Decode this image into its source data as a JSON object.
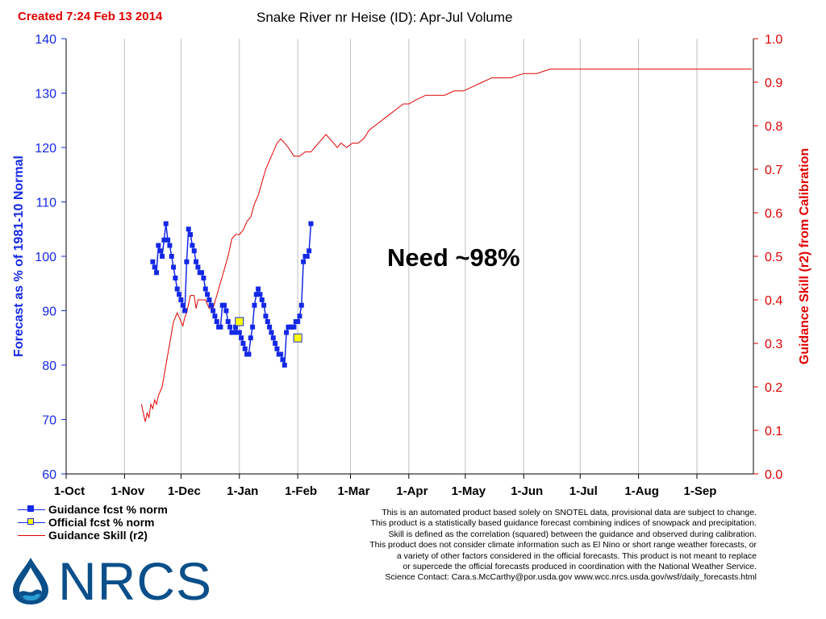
{
  "created": "Created 7:24 Feb 13 2014",
  "annotation": "Need ~98%",
  "legend": [
    {
      "label": "Guidance fcst  % norm",
      "color": "#1428e6",
      "marker": "square-filled"
    },
    {
      "label": "Official fcst  %  norm",
      "color": "#ffff00",
      "marker": "square-open"
    },
    {
      "label": "Guidance Skill (r2)",
      "color": "#e00000",
      "marker": "none"
    }
  ],
  "disclaimer": [
    "This is an automated product based solely on SNOTEL  data, provisional data are subject to change.",
    "This product is a statistically based guidance forecast combining indices of snowpack and precipitation.",
    "Skill is defined as the correlation (squared) between the guidance and observed during calibration.",
    "This product does not consider climate information such as El  Nino or short range weather forecasts, or",
    "a variety of other factors considered in the official forecasts. This product is not meant to replace",
    "or supercede the official forecasts produced in coordination with the National Weather Service.",
    "Science Contact: Cara.s.McCarthy@por.usda.gov www.wcc.nrcs.usda.gov/wsf/daily_forecasts.html"
  ],
  "logo": {
    "text": "NRCS",
    "icon": "water-drop-icon",
    "color": "#0a4f8a"
  },
  "chart_data": {
    "type": "line",
    "title": "Snake River nr Heise (ID): Apr-Jul Volume",
    "ylabel": "Forecast as % of 1981-10 Normal",
    "y2label": "Guidance Skill (r2) from Calibration",
    "xlabel": "",
    "x_tick_labels": [
      "1-Oct",
      "1-Nov",
      "1-Dec",
      "1-Jan",
      "1-Feb",
      "1-Mar",
      "1-Apr",
      "1-May",
      "1-Jun",
      "1-Jul",
      "1-Aug",
      "1-Sep"
    ],
    "x_range_days": [
      0,
      365
    ],
    "ylim": [
      60,
      140
    ],
    "y_ticks": [
      60,
      70,
      80,
      90,
      100,
      110,
      120,
      130,
      140
    ],
    "y2lim": [
      0.0,
      1.0
    ],
    "y2_ticks": [
      "0.0",
      "0.1",
      "0.2",
      "0.3",
      "0.4",
      "0.5",
      "0.6",
      "0.7",
      "0.8",
      "0.9",
      "1.0"
    ],
    "grid": true,
    "colors": {
      "guidance": "#1428e6",
      "official": "#ffff00",
      "skill": "#e00000",
      "axis_left": "#1428e6",
      "axis_right": "#e00000",
      "grid": "#c0c0c0"
    },
    "series": [
      {
        "name": "Guidance fcst  % norm",
        "axis": "left",
        "points": [
          [
            "2013-11-16",
            99
          ],
          [
            "2013-11-17",
            98
          ],
          [
            "2013-11-18",
            97
          ],
          [
            "2013-11-19",
            102
          ],
          [
            "2013-11-20",
            101
          ],
          [
            "2013-11-21",
            100
          ],
          [
            "2013-11-22",
            103
          ],
          [
            "2013-11-23",
            106
          ],
          [
            "2013-11-24",
            103
          ],
          [
            "2013-11-25",
            102
          ],
          [
            "2013-11-26",
            100
          ],
          [
            "2013-11-27",
            98
          ],
          [
            "2013-11-28",
            96
          ],
          [
            "2013-11-29",
            94
          ],
          [
            "2013-11-30",
            93
          ],
          [
            "2013-12-01",
            92
          ],
          [
            "2013-12-02",
            91
          ],
          [
            "2013-12-03",
            90
          ],
          [
            "2013-12-04",
            99
          ],
          [
            "2013-12-05",
            105
          ],
          [
            "2013-12-06",
            104
          ],
          [
            "2013-12-07",
            102
          ],
          [
            "2013-12-08",
            101
          ],
          [
            "2013-12-09",
            99
          ],
          [
            "2013-12-10",
            98
          ],
          [
            "2013-12-11",
            97
          ],
          [
            "2013-12-12",
            97
          ],
          [
            "2013-12-13",
            96
          ],
          [
            "2013-12-14",
            94
          ],
          [
            "2013-12-15",
            93
          ],
          [
            "2013-12-16",
            92
          ],
          [
            "2013-12-17",
            91
          ],
          [
            "2013-12-18",
            90
          ],
          [
            "2013-12-19",
            89
          ],
          [
            "2013-12-20",
            88
          ],
          [
            "2013-12-21",
            87
          ],
          [
            "2013-12-22",
            87
          ],
          [
            "2013-12-23",
            91
          ],
          [
            "2013-12-24",
            91
          ],
          [
            "2013-12-25",
            90
          ],
          [
            "2013-12-26",
            88
          ],
          [
            "2013-12-27",
            87
          ],
          [
            "2013-12-28",
            86
          ],
          [
            "2013-12-29",
            86
          ],
          [
            "2013-12-30",
            87
          ],
          [
            "2013-12-31",
            86
          ],
          [
            "2014-01-01",
            86
          ],
          [
            "2014-01-02",
            85
          ],
          [
            "2014-01-03",
            84
          ],
          [
            "2014-01-04",
            83
          ],
          [
            "2014-01-05",
            82
          ],
          [
            "2014-01-06",
            82
          ],
          [
            "2014-01-07",
            85
          ],
          [
            "2014-01-08",
            87
          ],
          [
            "2014-01-09",
            91
          ],
          [
            "2014-01-10",
            93
          ],
          [
            "2014-01-11",
            94
          ],
          [
            "2014-01-12",
            93
          ],
          [
            "2014-01-13",
            92
          ],
          [
            "2014-01-14",
            91
          ],
          [
            "2014-01-15",
            89
          ],
          [
            "2014-01-16",
            88
          ],
          [
            "2014-01-17",
            87
          ],
          [
            "2014-01-18",
            86
          ],
          [
            "2014-01-19",
            85
          ],
          [
            "2014-01-20",
            84
          ],
          [
            "2014-01-21",
            83
          ],
          [
            "2014-01-22",
            82
          ],
          [
            "2014-01-23",
            82
          ],
          [
            "2014-01-24",
            81
          ],
          [
            "2014-01-25",
            80
          ],
          [
            "2014-01-26",
            86
          ],
          [
            "2014-01-27",
            87
          ],
          [
            "2014-01-28",
            87
          ],
          [
            "2014-01-29",
            87
          ],
          [
            "2014-01-30",
            87
          ],
          [
            "2014-01-31",
            88
          ],
          [
            "2014-02-01",
            88
          ],
          [
            "2014-02-02",
            89
          ],
          [
            "2014-02-03",
            91
          ],
          [
            "2014-02-04",
            99
          ],
          [
            "2014-02-05",
            100
          ],
          [
            "2014-02-06",
            100
          ],
          [
            "2014-02-07",
            101
          ],
          [
            "2014-02-08",
            106
          ]
        ]
      },
      {
        "name": "Official fcst  %  norm",
        "axis": "left",
        "points": [
          [
            "2014-01-01",
            88
          ],
          [
            "2014-02-01",
            85
          ]
        ]
      },
      {
        "name": "Guidance Skill (r2)",
        "axis": "right",
        "points": [
          [
            "2013-11-10",
            0.16
          ],
          [
            "2013-11-11",
            0.14
          ],
          [
            "2013-11-12",
            0.12
          ],
          [
            "2013-11-13",
            0.14
          ],
          [
            "2013-11-14",
            0.13
          ],
          [
            "2013-11-15",
            0.16
          ],
          [
            "2013-11-16",
            0.15
          ],
          [
            "2013-11-17",
            0.17
          ],
          [
            "2013-11-18",
            0.16
          ],
          [
            "2013-11-19",
            0.18
          ],
          [
            "2013-11-21",
            0.2
          ],
          [
            "2013-11-23",
            0.25
          ],
          [
            "2013-11-25",
            0.3
          ],
          [
            "2013-11-27",
            0.35
          ],
          [
            "2013-11-29",
            0.37
          ],
          [
            "2013-12-01",
            0.35
          ],
          [
            "2013-12-02",
            0.34
          ],
          [
            "2013-12-03",
            0.36
          ],
          [
            "2013-12-04",
            0.37
          ],
          [
            "2013-12-05",
            0.39
          ],
          [
            "2013-12-06",
            0.41
          ],
          [
            "2013-12-07",
            0.41
          ],
          [
            "2013-12-08",
            0.41
          ],
          [
            "2013-12-09",
            0.38
          ],
          [
            "2013-12-10",
            0.4
          ],
          [
            "2013-12-12",
            0.4
          ],
          [
            "2013-12-14",
            0.4
          ],
          [
            "2013-12-16",
            0.38
          ],
          [
            "2013-12-18",
            0.38
          ],
          [
            "2013-12-20",
            0.41
          ],
          [
            "2013-12-22",
            0.44
          ],
          [
            "2013-12-24",
            0.47
          ],
          [
            "2013-12-26",
            0.5
          ],
          [
            "2013-12-28",
            0.54
          ],
          [
            "2013-12-30",
            0.55
          ],
          [
            "2014-01-01",
            0.55
          ],
          [
            "2014-01-03",
            0.56
          ],
          [
            "2014-01-05",
            0.58
          ],
          [
            "2014-01-07",
            0.59
          ],
          [
            "2014-01-09",
            0.62
          ],
          [
            "2014-01-11",
            0.64
          ],
          [
            "2014-01-13",
            0.67
          ],
          [
            "2014-01-15",
            0.7
          ],
          [
            "2014-01-18",
            0.73
          ],
          [
            "2014-01-21",
            0.76
          ],
          [
            "2014-01-23",
            0.77
          ],
          [
            "2014-01-25",
            0.76
          ],
          [
            "2014-01-27",
            0.75
          ],
          [
            "2014-01-30",
            0.73
          ],
          [
            "2014-02-02",
            0.73
          ],
          [
            "2014-02-05",
            0.74
          ],
          [
            "2014-02-08",
            0.74
          ],
          [
            "2014-02-10",
            0.75
          ],
          [
            "2014-02-12",
            0.76
          ],
          [
            "2014-02-14",
            0.77
          ],
          [
            "2014-02-16",
            0.78
          ],
          [
            "2014-02-18",
            0.77
          ],
          [
            "2014-02-20",
            0.76
          ],
          [
            "2014-02-22",
            0.75
          ],
          [
            "2014-02-24",
            0.76
          ],
          [
            "2014-02-27",
            0.75
          ],
          [
            "2014-03-02",
            0.76
          ],
          [
            "2014-03-05",
            0.76
          ],
          [
            "2014-03-08",
            0.77
          ],
          [
            "2014-03-11",
            0.79
          ],
          [
            "2014-03-14",
            0.8
          ],
          [
            "2014-03-17",
            0.81
          ],
          [
            "2014-03-20",
            0.82
          ],
          [
            "2014-03-23",
            0.83
          ],
          [
            "2014-03-26",
            0.84
          ],
          [
            "2014-03-29",
            0.85
          ],
          [
            "2014-04-01",
            0.85
          ],
          [
            "2014-04-05",
            0.86
          ],
          [
            "2014-04-10",
            0.87
          ],
          [
            "2014-04-15",
            0.87
          ],
          [
            "2014-04-20",
            0.87
          ],
          [
            "2014-04-25",
            0.88
          ],
          [
            "2014-04-30",
            0.88
          ],
          [
            "2014-05-05",
            0.89
          ],
          [
            "2014-05-10",
            0.9
          ],
          [
            "2014-05-15",
            0.91
          ],
          [
            "2014-05-20",
            0.91
          ],
          [
            "2014-05-25",
            0.91
          ],
          [
            "2014-06-01",
            0.92
          ],
          [
            "2014-06-08",
            0.92
          ],
          [
            "2014-06-15",
            0.93
          ],
          [
            "2014-06-22",
            0.93
          ],
          [
            "2014-07-01",
            0.93
          ],
          [
            "2014-07-10",
            0.93
          ],
          [
            "2014-07-20",
            0.93
          ],
          [
            "2014-08-01",
            0.93
          ],
          [
            "2014-08-15",
            0.93
          ],
          [
            "2014-09-01",
            0.93
          ],
          [
            "2014-09-15",
            0.93
          ],
          [
            "2014-09-30",
            0.93
          ]
        ]
      }
    ]
  }
}
